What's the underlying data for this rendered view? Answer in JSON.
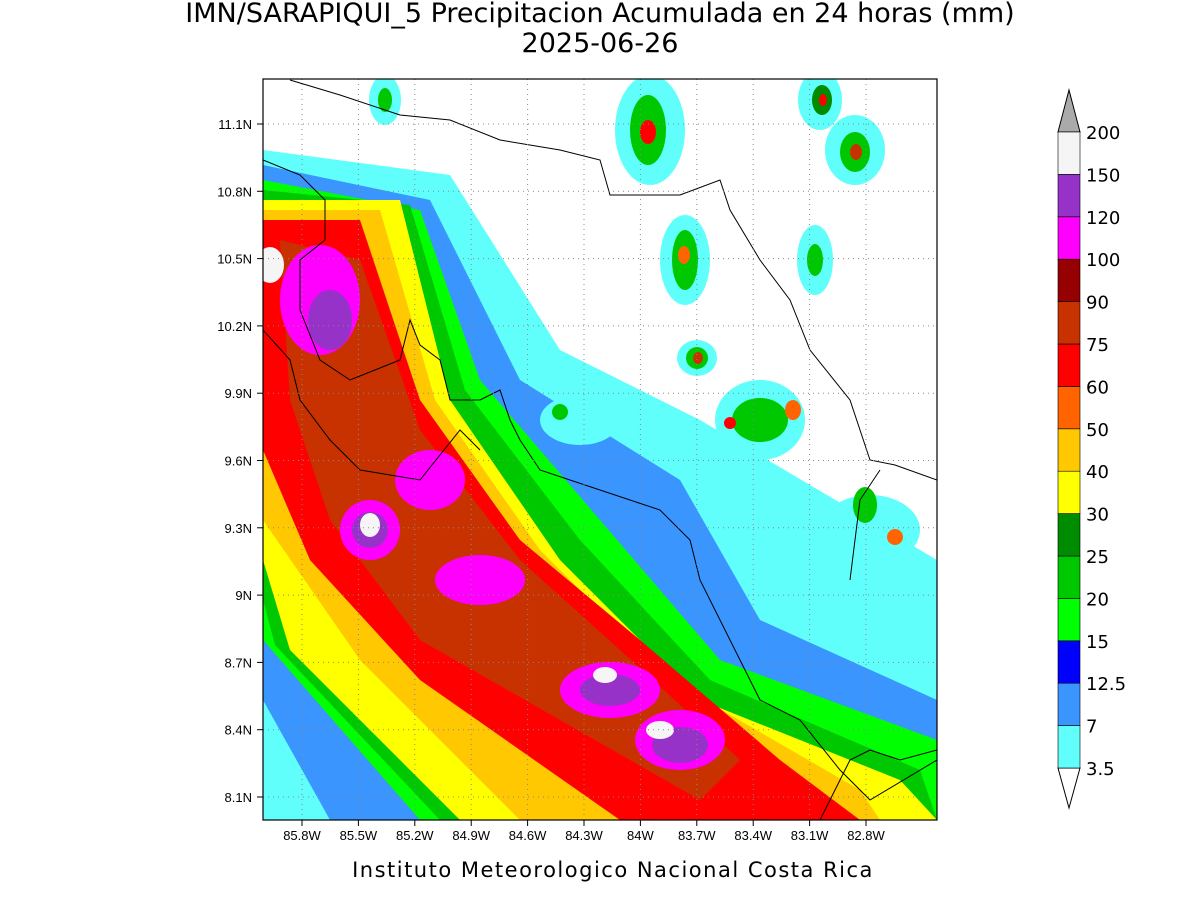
{
  "title": "IMN/SARAPIQUI_5 Precipitacion Acumulada en 24 horas (mm)",
  "date": "2025-06-26",
  "lat_labels": [
    "11.1N",
    "10.8N",
    "10.5N",
    "10.2N",
    "9.9N",
    "9.6N",
    "9.3N",
    "9N",
    "8.7N",
    "8.4N",
    "8.1N"
  ],
  "lon_labels": [
    "85.8W",
    "85.5W",
    "85.2W",
    "84.9W",
    "84.6W",
    "84.3W",
    "84W",
    "83.7W",
    "83.4W",
    "83.1W",
    "82.8W"
  ],
  "colorbar": {
    "levels": [
      3.5,
      7,
      12.5,
      15,
      20,
      25,
      30,
      40,
      50,
      60,
      75,
      90,
      100,
      120,
      150,
      200
    ],
    "colors": [
      "#ffffff",
      "#60fffc",
      "#3a95ff",
      "#0000ff",
      "#00ff00",
      "#00c800",
      "#008c00",
      "#ffff00",
      "#ffc800",
      "#ff6400",
      "#ff0000",
      "#c83200",
      "#960000",
      "#ff00ff",
      "#9632c8",
      "#f5f5f5",
      "#aaaaaa"
    ]
  },
  "footer": "Instituto Meteorologico Nacional Costa Rica"
}
